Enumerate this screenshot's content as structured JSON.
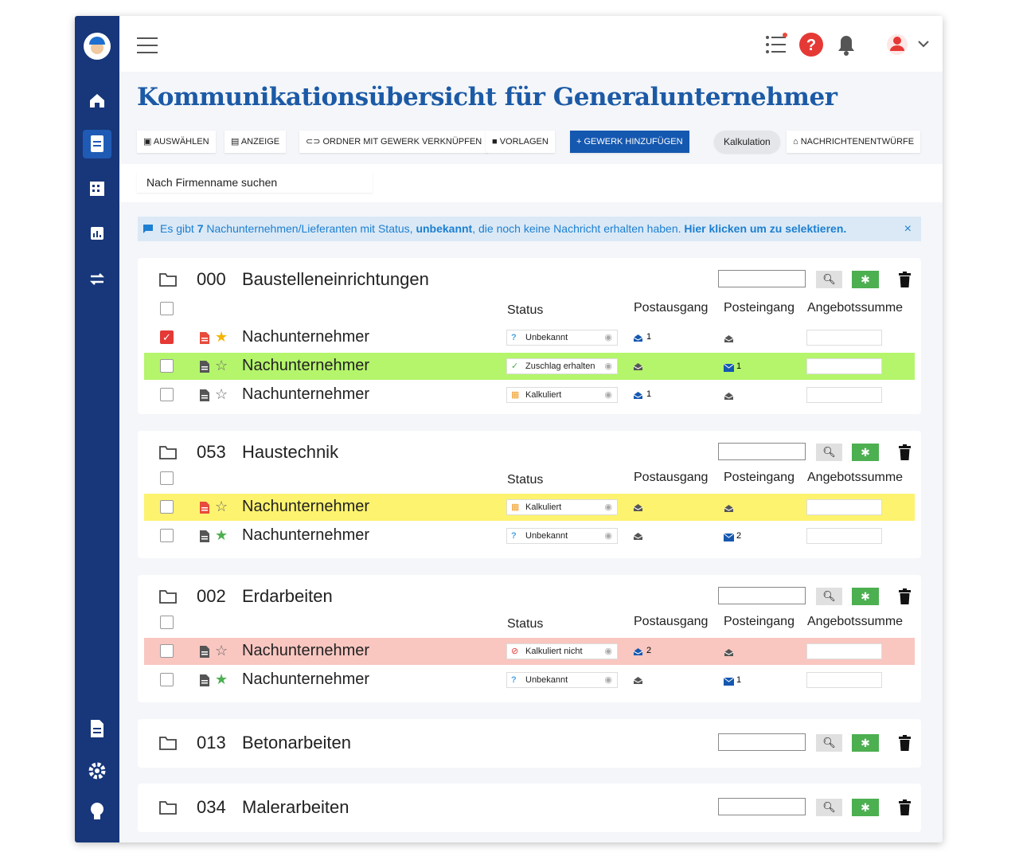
{
  "header": {
    "title": "Kommunikationsübersicht für Generalunternehmer"
  },
  "toolbar": [
    "AUSWÄHLEN",
    "ANZEIGE",
    "ORDNER MIT GEWERK VERKNÜPFEN",
    "VORLAGEN",
    "+ GEWERK HINZUFÜGEN",
    "Kalkulation",
    "NACHRICHTENENTWÜRFE"
  ],
  "search": {
    "placeholder": "Nach Firmenname suchen"
  },
  "notice": {
    "before": "Es gibt",
    "count": "7",
    "middle": "Nachunternehmen/Lieferanten mit Status,",
    "status": "unbekannt",
    "after": ", die noch keine Nachricht erhalten haben.",
    "link": "Hier klicken um zu selektieren."
  },
  "columns": [
    "Status",
    "Postausgang",
    "Posteingang",
    "Angebotssumme"
  ],
  "groups": [
    {
      "code": "000",
      "name": "Baustelleneinrichtungen",
      "rows": [
        {
          "name": "Nachunternehmer",
          "status": "Unbekannt",
          "status_icon": "unknown",
          "out": 1,
          "in": null,
          "checked": true,
          "star": "#f5b400",
          "doc": "#e74c3c",
          "highlight": null
        },
        {
          "name": "Nachunternehmer",
          "status": "Zuschlag erhalten",
          "status_icon": "won",
          "out": null,
          "in": 1,
          "checked": false,
          "star": null,
          "doc": "#555",
          "highlight": "#b4f56b"
        },
        {
          "name": "Nachunternehmer",
          "status": "Kalkuliert",
          "status_icon": "calc",
          "out": 1,
          "in": null,
          "checked": false,
          "star": null,
          "doc": "#555",
          "highlight": null
        }
      ]
    },
    {
      "code": "053",
      "name": "Haustechnik",
      "rows": [
        {
          "name": "Nachunternehmer",
          "status": "Kalkuliert",
          "status_icon": "calc",
          "out": null,
          "in": null,
          "checked": false,
          "star": null,
          "doc": "#e74c3c",
          "highlight": "#fdf36e"
        },
        {
          "name": "Nachunternehmer",
          "status": "Unbekannt",
          "status_icon": "unknown",
          "out": null,
          "in": 2,
          "checked": false,
          "star": "#4caf50",
          "doc": "#555",
          "highlight": null
        }
      ]
    },
    {
      "code": "002",
      "name": "Erdarbeiten",
      "rows": [
        {
          "name": "Nachunternehmer",
          "status": "Kalkuliert nicht",
          "status_icon": "no",
          "out": 2,
          "in": null,
          "checked": false,
          "star": null,
          "doc": "#555",
          "highlight": "#f9c6c0"
        },
        {
          "name": "Nachunternehmer",
          "status": "Unbekannt",
          "status_icon": "unknown",
          "out": null,
          "in": 1,
          "checked": false,
          "star": "#4caf50",
          "doc": "#555",
          "highlight": null
        }
      ]
    },
    {
      "code": "013",
      "name": "Betonarbeiten"
    },
    {
      "code": "034",
      "name": "Malerarbeiten"
    }
  ]
}
